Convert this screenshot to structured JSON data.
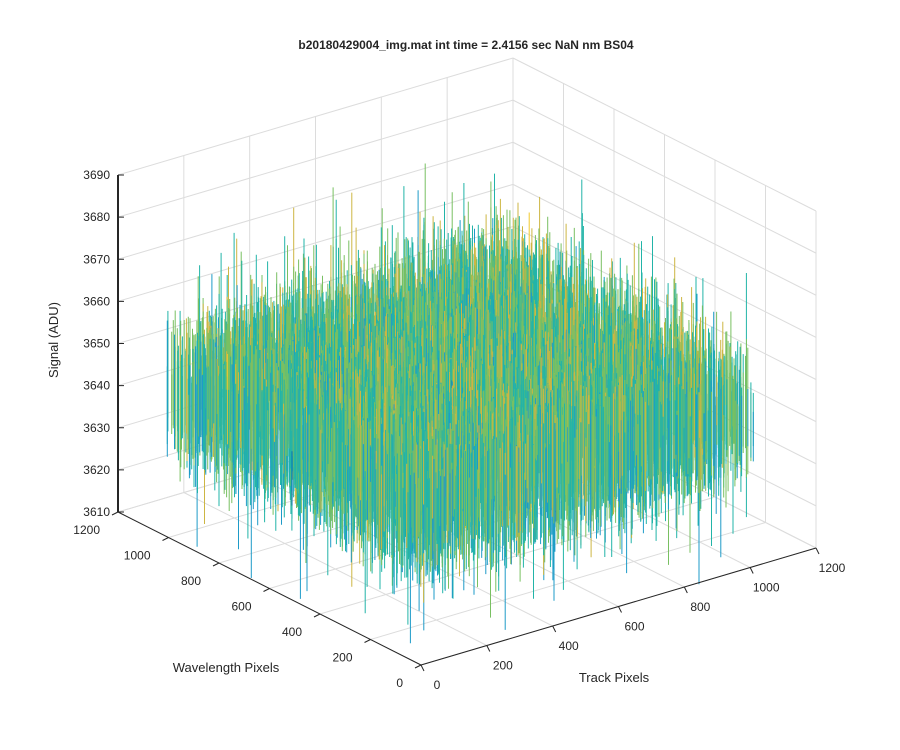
{
  "chart_data": {
    "type": "surface",
    "title": "b20180429004_img.mat int time = 2.4156 sec  NaN nm BS04",
    "xlabel": "Track Pixels",
    "ylabel": "Wavelength Pixels",
    "zlabel": "Signal (ADU)",
    "xlim": [
      0,
      1200
    ],
    "ylim": [
      0,
      1200
    ],
    "zlim": [
      3610,
      3690
    ],
    "x_ticks": [
      "0",
      "200",
      "400",
      "600",
      "800",
      "1000",
      "1200"
    ],
    "y_ticks": [
      "0",
      "200",
      "400",
      "600",
      "800",
      "1000",
      "1200"
    ],
    "z_ticks": [
      "3610",
      "3620",
      "3630",
      "3640",
      "3650",
      "3660",
      "3670",
      "3680",
      "3690"
    ],
    "data_extent": {
      "x": [
        1,
        1024
      ],
      "y": [
        1,
        1024
      ]
    },
    "signal_summary": {
      "mean": 3645,
      "typical_min": 3625,
      "typical_max": 3665,
      "min": 3608,
      "max": 3690
    },
    "grid": true,
    "colormap": [
      "#0072BD",
      "#1E9BC8",
      "#22B4A8",
      "#79C062",
      "#CDB643",
      "#F2C92E"
    ]
  }
}
